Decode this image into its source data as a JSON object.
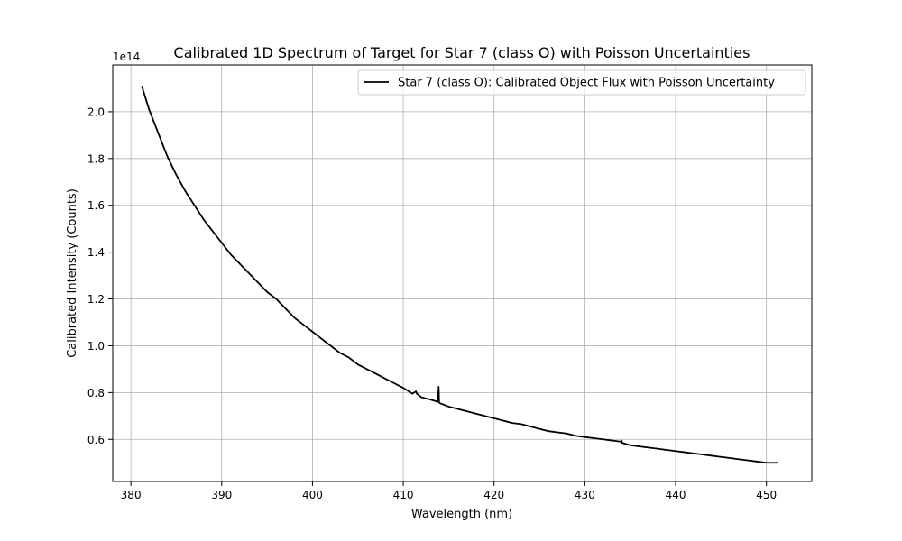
{
  "chart_data": {
    "type": "line",
    "title": "Calibrated 1D Spectrum of Target for Star 7 (class O) with Poisson Uncertainties",
    "xlabel": "Wavelength (nm)",
    "ylabel": "Calibrated Intensity (Counts)",
    "y_scale_label": "1e14",
    "xlim": [
      378,
      455
    ],
    "ylim": [
      0.42,
      2.2
    ],
    "x_ticks": [
      380,
      390,
      400,
      410,
      420,
      430,
      440,
      450
    ],
    "x_tick_labels": [
      "380",
      "390",
      "400",
      "410",
      "420",
      "430",
      "440",
      "450"
    ],
    "y_ticks": [
      0.6,
      0.8,
      1.0,
      1.2,
      1.4,
      1.6,
      1.8,
      2.0
    ],
    "y_tick_labels": [
      "0.6",
      "0.8",
      "1.0",
      "1.2",
      "1.4",
      "1.6",
      "1.8",
      "2.0"
    ],
    "grid": true,
    "legend_position": "top-right",
    "series": [
      {
        "name": "Star 7 (class O): Calibrated Object Flux with Poisson Uncertainty",
        "color": "#000000",
        "x": [
          381.2,
          382,
          383,
          384,
          385,
          386,
          387,
          388,
          389,
          390,
          391,
          392,
          393,
          394,
          395,
          396,
          397,
          398,
          399,
          400,
          401,
          402,
          403,
          404,
          405,
          406,
          407,
          408,
          409,
          410,
          411,
          411.4,
          411.5,
          412,
          413,
          413.8,
          413.9,
          413.95,
          414,
          415,
          416,
          417,
          418,
          419,
          420,
          421,
          422,
          423,
          424,
          425,
          426,
          427,
          428,
          429,
          430,
          431,
          432,
          433,
          433.05,
          433.1,
          434,
          434.05,
          434.1,
          435,
          436,
          437,
          438,
          439,
          440,
          441,
          442,
          443,
          444,
          445,
          446,
          447,
          448,
          449,
          450,
          451.3
        ],
        "values": [
          2.11,
          2.01,
          1.91,
          1.81,
          1.73,
          1.66,
          1.6,
          1.54,
          1.49,
          1.44,
          1.39,
          1.35,
          1.31,
          1.27,
          1.23,
          1.2,
          1.16,
          1.12,
          1.09,
          1.06,
          1.03,
          1.0,
          0.97,
          0.95,
          0.92,
          0.9,
          0.88,
          0.86,
          0.84,
          0.82,
          0.795,
          0.805,
          0.795,
          0.78,
          0.77,
          0.76,
          0.825,
          0.76,
          0.755,
          0.74,
          0.73,
          0.72,
          0.71,
          0.7,
          0.69,
          0.68,
          0.67,
          0.665,
          0.655,
          0.645,
          0.635,
          0.63,
          0.625,
          0.615,
          0.61,
          0.605,
          0.6,
          0.595,
          0.595,
          0.595,
          0.59,
          0.595,
          0.585,
          0.575,
          0.57,
          0.565,
          0.56,
          0.555,
          0.55,
          0.545,
          0.54,
          0.535,
          0.53,
          0.525,
          0.52,
          0.515,
          0.51,
          0.505,
          0.5,
          0.5
        ]
      }
    ]
  }
}
